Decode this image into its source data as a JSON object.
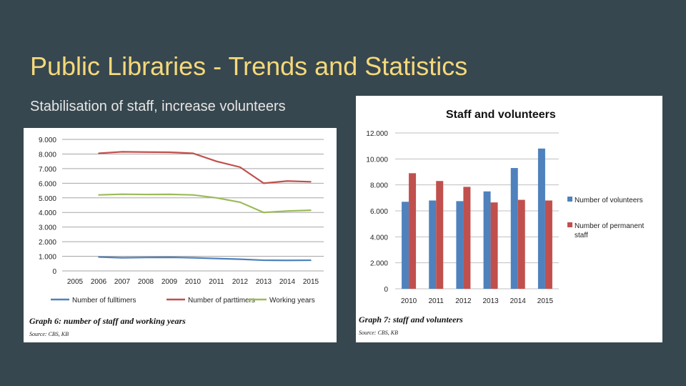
{
  "slide": {
    "title": "Public Libraries - Trends and Statistics",
    "subtitle": "Stabilisation of staff, increase volunteers"
  },
  "colors": {
    "background": "#37474f",
    "title": "#f5d97a",
    "fulltimers": "#4f81bd",
    "parttimers": "#c0504d",
    "working_years": "#9bbb59",
    "volunteers": "#4f81bd",
    "permanent_staff": "#c0504d"
  },
  "chart_data": [
    {
      "type": "line",
      "title": "",
      "caption": "Graph 6: number of staff and working years",
      "source": "Source: CBS, KB",
      "x": [
        "2005",
        "2006",
        "2007",
        "2008",
        "2009",
        "2010",
        "2011",
        "2012",
        "2013",
        "2014",
        "2015"
      ],
      "yticks": [
        "0",
        "1.000",
        "2.000",
        "3.000",
        "4.000",
        "5.000",
        "6.000",
        "7.000",
        "8.000",
        "9.000"
      ],
      "ylim": [
        0,
        9000
      ],
      "grid": true,
      "legend": "bottom",
      "series": [
        {
          "name": "Number of fulltimers",
          "values": [
            null,
            950,
            900,
            920,
            930,
            900,
            850,
            800,
            730,
            720,
            730
          ]
        },
        {
          "name": "Number of parttimers",
          "values": [
            null,
            8050,
            8150,
            8130,
            8120,
            8050,
            7500,
            7100,
            6000,
            6150,
            6100
          ]
        },
        {
          "name": "Working years",
          "values": [
            null,
            5200,
            5250,
            5230,
            5240,
            5200,
            5000,
            4700,
            4000,
            4100,
            4150
          ]
        }
      ]
    },
    {
      "type": "bar",
      "title": "Staff and volunteers",
      "caption": "Graph 7: staff and volunteers",
      "source": "Source: CBS, KB",
      "categories": [
        "2010",
        "2011",
        "2012",
        "2013",
        "2014",
        "2015"
      ],
      "yticks": [
        "0",
        "2.000",
        "4.000",
        "6.000",
        "8.000",
        "10.000",
        "12.000"
      ],
      "ylim": [
        0,
        12000
      ],
      "grid": true,
      "legend": "right",
      "series": [
        {
          "name": "Number of volunteers",
          "values": [
            6700,
            6800,
            6750,
            7500,
            9300,
            10800
          ]
        },
        {
          "name": "Number of permanent staff",
          "values": [
            8900,
            8300,
            7850,
            6650,
            6850,
            6800
          ]
        }
      ]
    }
  ]
}
